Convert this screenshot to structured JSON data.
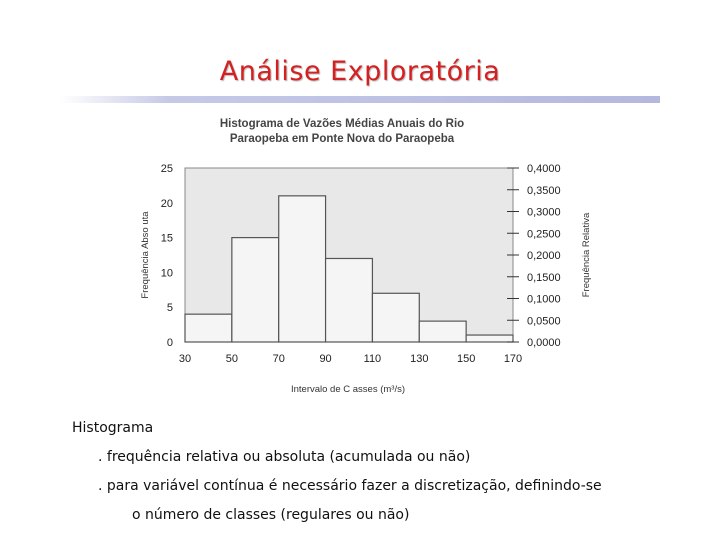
{
  "slide": {
    "title": "Análise Exploratória"
  },
  "chart_data": {
    "type": "bar",
    "title": "Histograma de Vazões Médias Anuais do Rio",
    "subtitle": "Paraopeba em Ponte Nova do Paraopeba",
    "xlabel": "Intervalo de C asses (m³/s)",
    "ylabel": "Frequência Abso uta",
    "y2label": "Frequência Relativa",
    "bin_edges": [
      30,
      50,
      70,
      90,
      110,
      130,
      150,
      170
    ],
    "x_ticks": [
      "30",
      "50",
      "70",
      "90",
      "110",
      "130",
      "150",
      "170"
    ],
    "values": [
      4,
      15,
      21,
      12,
      7,
      3,
      1
    ],
    "ylim": [
      0,
      25
    ],
    "y_ticks": [
      "0",
      "5",
      "10",
      "15",
      "20",
      "25"
    ],
    "y2lim": [
      0,
      0.4
    ],
    "y2_ticks": [
      "0,0000",
      "0,0500",
      "0,1000",
      "0,1500",
      "0,2000",
      "0,2500",
      "0,3000",
      "0,3500",
      "0,4000"
    ],
    "plot_background": "#e8e8e8",
    "bar_fill": "#f5f5f5",
    "bar_stroke": "#555555"
  },
  "text": {
    "heading": "Histograma",
    "bullet1": ". frequência relativa ou absoluta (acumulada ou não)",
    "bullet2": ". para variável contínua é necessário fazer a discretização, definindo-se",
    "bullet2_cont": "o número de classes (regulares ou não)"
  }
}
